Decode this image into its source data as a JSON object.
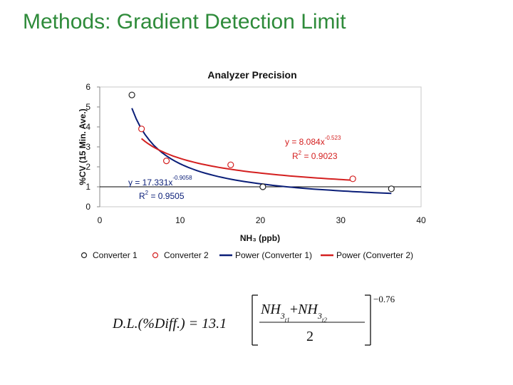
{
  "slide": {
    "title": "Methods: Gradient Detection Limit"
  },
  "colors": {
    "title": "#2e8b3a",
    "converter1": "#0a1e78",
    "converter2": "#d42020"
  },
  "chart_data": {
    "type": "scatter",
    "title": "Analyzer Precision",
    "xlabel": "NH₃ (ppb)",
    "ylabel": "%CV (15 Min. Ave.)",
    "xlim": [
      0,
      40
    ],
    "ylim": [
      0,
      6
    ],
    "xticks": [
      "0",
      "10",
      "20",
      "30",
      "40"
    ],
    "yticks": [
      "0",
      "1",
      "2",
      "3",
      "4",
      "5",
      "6"
    ],
    "grid": false,
    "legend_position": "bottom",
    "series": [
      {
        "name": "Converter 1",
        "marker": "circle-open",
        "color": "#222222",
        "x": [
          4,
          20.3,
          36.3
        ],
        "y": [
          5.6,
          1.0,
          0.9
        ]
      },
      {
        "name": "Converter 2",
        "marker": "circle-open",
        "color": "#d42020",
        "x": [
          5.2,
          8.3,
          16.3,
          31.5
        ],
        "y": [
          3.9,
          2.3,
          2.1,
          1.4
        ]
      },
      {
        "name": "Power (Converter 1)",
        "type": "line",
        "color": "#0a1e78",
        "fit": {
          "coef": 17.331,
          "exp": -0.9058
        },
        "x_range": [
          4,
          36.3
        ]
      },
      {
        "name": "Power (Converter 2)",
        "type": "line",
        "color": "#d42020",
        "fit": {
          "coef": 8.084,
          "exp": -0.523
        },
        "x_range": [
          5.2,
          31.5
        ]
      }
    ],
    "annotations": {
      "c1_eq": "y = 17.331x",
      "c1_exp": "-0.9058",
      "c1_r2_pre": "R",
      "c1_r2_sup": "2",
      "c1_r2_val": " = 0.9505",
      "c2_eq": "y = 8.084x",
      "c2_exp": "-0.523",
      "c2_r2_pre": "R",
      "c2_r2_sup": "2",
      "c2_r2_val": " = 0.9023"
    }
  },
  "formula": {
    "lhs": "D.L.(%Diff.) = 13.1",
    "nh": "NH",
    "sub3": "3",
    "subt1": "t1",
    "subt2": "t2",
    "plus": "+",
    "denominator": "2",
    "exponent": "−0.76"
  }
}
